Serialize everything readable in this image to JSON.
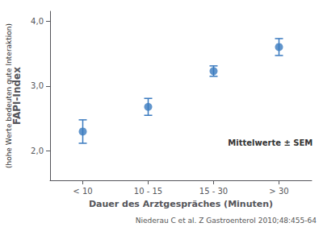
{
  "chart_data": {
    "type": "scatter",
    "xlabel": "Dauer des Arztgespräches (Minuten)",
    "ylabel": "FAPI-Index",
    "annotations": [
      "(hohe Werte bedeuten gute Interaktion)",
      "Mittelwerte ± SEM",
      "Niederau C et al. Z Gastroenterol 2010;48:455-64"
    ],
    "categories": [
      "< 10",
      "10 - 15",
      "15 - 30",
      "> 30"
    ],
    "values": [
      2.3,
      2.68,
      3.23,
      3.6
    ],
    "sem": [
      0.18,
      0.13,
      0.08,
      0.13
    ],
    "color": "#3a7abf",
    "ylim": [
      1.55,
      4.15
    ],
    "yticks": [
      {
        "value": 2.0,
        "label": "2,0"
      },
      {
        "value": 3.0,
        "label": "3,0"
      },
      {
        "value": 4.0,
        "label": "4,0"
      }
    ],
    "grid": false
  }
}
